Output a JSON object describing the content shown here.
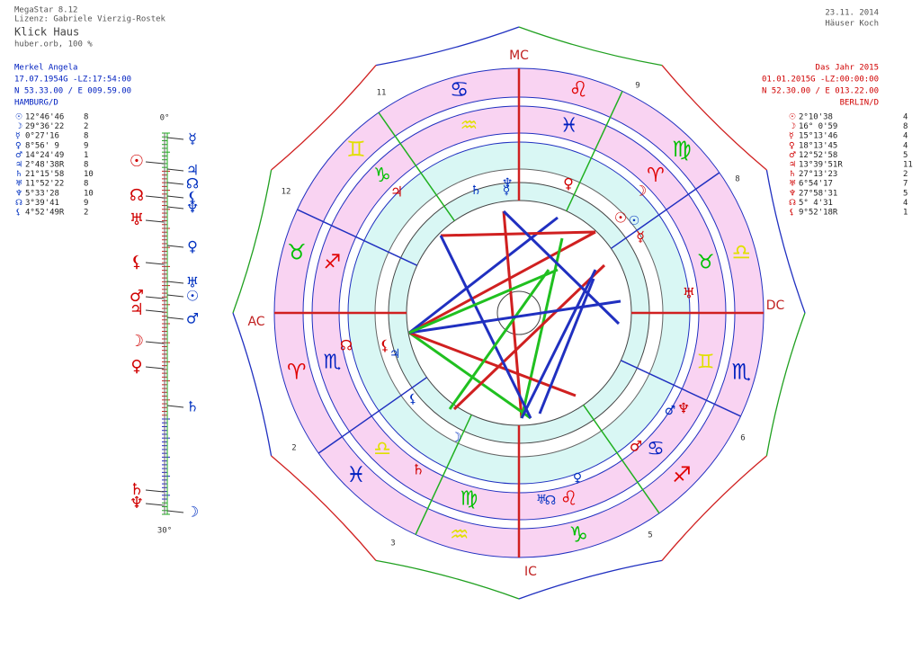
{
  "header": {
    "program": "MegaStar 8.12",
    "license": "Lizenz: Gabriele Vierzig-Rostek",
    "title": "Klick Haus",
    "orb": "huber.orb, 100 %",
    "date": "23.11. 2014",
    "house_system": "Häuser Koch"
  },
  "radix": {
    "name": "Merkel Angela",
    "datetime": "17.07.1954G -LZ:17:54:00",
    "coords": "N 53.33.00 / E 009.59.00",
    "place": "HAMBURG/D",
    "planets": [
      {
        "symbol": "☉",
        "position": "12°46'46",
        "house": "8"
      },
      {
        "symbol": "☽",
        "position": "29°36'22",
        "house": "2"
      },
      {
        "symbol": "☿",
        "position": "0°27'16",
        "house": "8"
      },
      {
        "symbol": "♀",
        "position": "8°56' 9",
        "house": "9"
      },
      {
        "symbol": "♂",
        "position": "14°24'49",
        "house": "1"
      },
      {
        "symbol": "♃",
        "position": "2°48'38R",
        "house": "8"
      },
      {
        "symbol": "♄",
        "position": "21°15'58",
        "house": "10"
      },
      {
        "symbol": "♅",
        "position": "11°52'22",
        "house": "8"
      },
      {
        "symbol": "♆",
        "position": "5°33'28",
        "house": "10"
      },
      {
        "symbol": "☊",
        "position": "3°39'41",
        "house": "9"
      },
      {
        "symbol": "⚸",
        "position": "4°52'49R",
        "house": "2"
      }
    ]
  },
  "transit": {
    "name": "Das Jahr 2015",
    "datetime": "01.01.2015G -LZ:00:00:00",
    "coords": "N 52.30.00 / E 013.22.00",
    "place": "BERLIN/D",
    "planets": [
      {
        "symbol": "☉",
        "position": "2°10'38",
        "house": "4"
      },
      {
        "symbol": "☽",
        "position": "16° 0'59",
        "house": "8"
      },
      {
        "symbol": "☿",
        "position": "15°13'46",
        "house": "4"
      },
      {
        "symbol": "♀",
        "position": "18°13'45",
        "house": "4"
      },
      {
        "symbol": "♂",
        "position": "12°52'58",
        "house": "5"
      },
      {
        "symbol": "♃",
        "position": "13°39'51R",
        "house": "11"
      },
      {
        "symbol": "♄",
        "position": "27°13'23",
        "house": "2"
      },
      {
        "symbol": "♅",
        "position": "6°54'17",
        "house": "7"
      },
      {
        "symbol": "♆",
        "position": "27°58'31",
        "house": "5"
      },
      {
        "symbol": "☊",
        "position": "5° 4'31",
        "house": "4"
      },
      {
        "symbol": "⚸",
        "position": "9°52'18R",
        "house": "1"
      }
    ]
  },
  "scale": {
    "top": "0°",
    "bottom": "30°"
  },
  "wheel": {
    "angles": {
      "mc": "MC",
      "dc": "DC",
      "ic": "IC",
      "ac": "AC"
    },
    "houses": [
      "11",
      "12",
      "2",
      "3",
      "5",
      "6",
      "8",
      "9"
    ],
    "signs": [
      "♈",
      "♉",
      "♊",
      "♋",
      "♌",
      "♍",
      "♎",
      "♏",
      "♐",
      "♑",
      "♒",
      "♓"
    ]
  }
}
